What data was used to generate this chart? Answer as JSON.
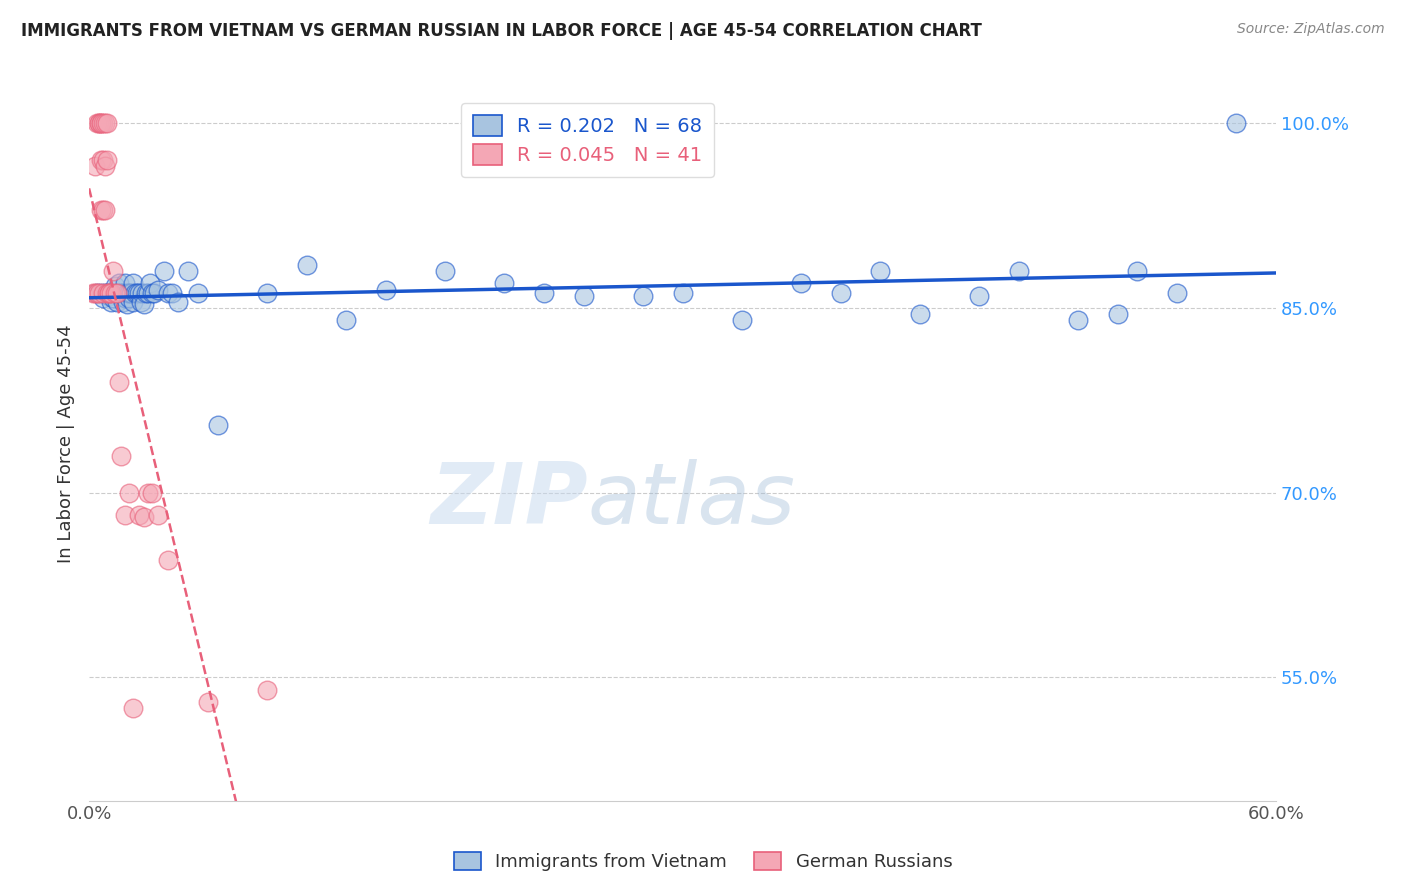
{
  "title": "IMMIGRANTS FROM VIETNAM VS GERMAN RUSSIAN IN LABOR FORCE | AGE 45-54 CORRELATION CHART",
  "source": "Source: ZipAtlas.com",
  "ylabel": "In Labor Force | Age 45-54",
  "xmin": 0.0,
  "xmax": 0.6,
  "ymin": 0.45,
  "ymax": 1.03,
  "yticks": [
    0.55,
    0.7,
    0.85,
    1.0
  ],
  "ytick_labels": [
    "55.0%",
    "70.0%",
    "85.0%",
    "100.0%"
  ],
  "xticks": [
    0.0,
    0.1,
    0.2,
    0.3,
    0.4,
    0.5,
    0.6
  ],
  "xtick_labels": [
    "0.0%",
    "",
    "",
    "",
    "",
    "",
    "60.0%"
  ],
  "blue_R": 0.202,
  "blue_N": 68,
  "pink_R": 0.045,
  "pink_N": 41,
  "blue_color": "#A8C4E0",
  "pink_color": "#F4A7B5",
  "blue_line_color": "#1A56CC",
  "pink_line_color": "#E8607A",
  "legend_label_blue": "Immigrants from Vietnam",
  "legend_label_pink": "German Russians",
  "watermark_zip": "ZIP",
  "watermark_atlas": "atlas",
  "blue_scatter_x": [
    0.004,
    0.006,
    0.007,
    0.008,
    0.009,
    0.01,
    0.01,
    0.011,
    0.012,
    0.013,
    0.013,
    0.014,
    0.015,
    0.015,
    0.016,
    0.016,
    0.017,
    0.017,
    0.018,
    0.018,
    0.019,
    0.019,
    0.02,
    0.02,
    0.021,
    0.022,
    0.022,
    0.023,
    0.024,
    0.025,
    0.026,
    0.027,
    0.028,
    0.029,
    0.03,
    0.031,
    0.032,
    0.033,
    0.035,
    0.038,
    0.04,
    0.042,
    0.045,
    0.05,
    0.055,
    0.065,
    0.09,
    0.11,
    0.13,
    0.15,
    0.18,
    0.21,
    0.23,
    0.25,
    0.28,
    0.3,
    0.33,
    0.36,
    0.38,
    0.4,
    0.42,
    0.45,
    0.47,
    0.5,
    0.52,
    0.53,
    0.55,
    0.58
  ],
  "blue_scatter_y": [
    0.862,
    0.862,
    0.858,
    0.862,
    0.862,
    0.862,
    0.86,
    0.855,
    0.858,
    0.862,
    0.868,
    0.855,
    0.862,
    0.87,
    0.862,
    0.86,
    0.855,
    0.862,
    0.858,
    0.87,
    0.853,
    0.862,
    0.858,
    0.862,
    0.862,
    0.87,
    0.855,
    0.862,
    0.862,
    0.862,
    0.855,
    0.862,
    0.853,
    0.862,
    0.862,
    0.87,
    0.862,
    0.862,
    0.865,
    0.88,
    0.862,
    0.862,
    0.855,
    0.88,
    0.862,
    0.755,
    0.862,
    0.885,
    0.84,
    0.865,
    0.88,
    0.87,
    0.862,
    0.86,
    0.86,
    0.862,
    0.84,
    0.87,
    0.862,
    0.88,
    0.845,
    0.86,
    0.88,
    0.84,
    0.845,
    0.88,
    0.862,
    1.0
  ],
  "pink_scatter_x": [
    0.002,
    0.003,
    0.003,
    0.004,
    0.004,
    0.005,
    0.005,
    0.005,
    0.006,
    0.006,
    0.006,
    0.006,
    0.007,
    0.007,
    0.007,
    0.007,
    0.008,
    0.008,
    0.008,
    0.009,
    0.009,
    0.009,
    0.01,
    0.01,
    0.011,
    0.012,
    0.013,
    0.014,
    0.015,
    0.016,
    0.018,
    0.02,
    0.022,
    0.025,
    0.028,
    0.03,
    0.032,
    0.035,
    0.04,
    0.06,
    0.09
  ],
  "pink_scatter_y": [
    0.862,
    0.862,
    0.965,
    0.862,
    1.0,
    0.862,
    1.0,
    1.0,
    1.0,
    1.0,
    0.97,
    0.93,
    1.0,
    0.97,
    0.93,
    0.862,
    1.0,
    0.965,
    0.93,
    1.0,
    0.97,
    0.862,
    0.862,
    0.862,
    0.862,
    0.88,
    0.862,
    0.862,
    0.79,
    0.73,
    0.682,
    0.7,
    0.525,
    0.682,
    0.68,
    0.7,
    0.7,
    0.682,
    0.645,
    0.53,
    0.54
  ]
}
